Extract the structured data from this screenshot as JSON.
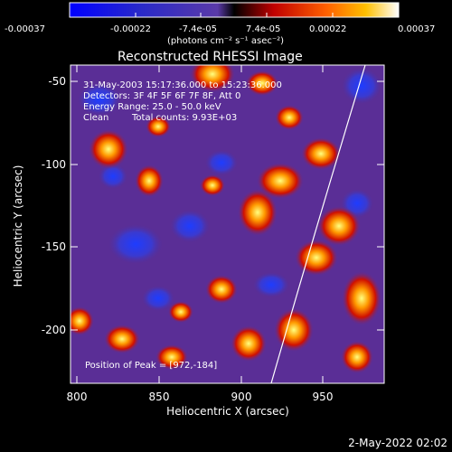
{
  "colorbar": {
    "ticks": [
      "-0.00037",
      "-0.00022",
      "-7.4e-05",
      "7.4e-05",
      "0.00022",
      "0.00037"
    ],
    "units": "(photons cm⁻² s⁻¹ asec⁻²)"
  },
  "title": "Reconstructed RHESSI Image",
  "info": {
    "line1": "31-May-2003 15:17:36.000 to 15:23:36.000",
    "line2": "Detectors: 3F 4F 5F 6F 7F 8F, Att 0",
    "line3": "Energy Range: 25.0 - 50.0 keV",
    "line4_a": "Clean",
    "line4_b": "Total counts: 9.93E+03"
  },
  "peak": "Position of Peak = [972,-184]",
  "xaxis": {
    "label": "Heliocentric X (arcsec)",
    "ticks": [
      "800",
      "850",
      "900",
      "950"
    ]
  },
  "yaxis": {
    "label": "Heliocentric Y (arcsec)",
    "ticks": [
      "-50",
      "-100",
      "-150",
      "-200"
    ]
  },
  "footer_date": "2-May-2022 02:02"
}
